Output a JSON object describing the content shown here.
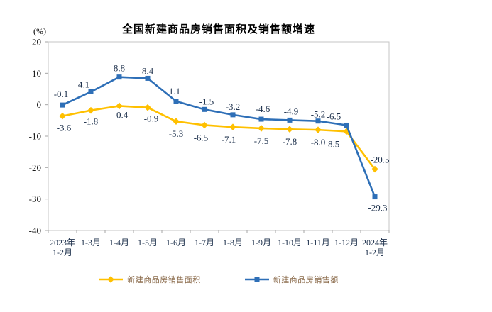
{
  "chart_data": {
    "type": "line",
    "title": "全国新建商品房销售面积及销售额增速",
    "unit_label": "(%)",
    "categories": [
      "2023年\n1-2月",
      "1-3月",
      "1-4月",
      "1-5月",
      "1-6月",
      "1-7月",
      "1-8月",
      "1-9月",
      "1-10月",
      "1-11月",
      "1-12月",
      "2024年\n1-2月"
    ],
    "series": [
      {
        "name": "新建商品房销售面积",
        "color": "#FFC000",
        "marker": "diamond",
        "values": [
          -3.6,
          -1.8,
          -0.4,
          -0.9,
          -5.3,
          -6.5,
          -7.1,
          -7.5,
          -7.8,
          -8.0,
          -8.5,
          -20.5
        ]
      },
      {
        "name": "新建商品房销售额",
        "color": "#2E6FB7",
        "marker": "square",
        "values": [
          -0.1,
          4.1,
          8.8,
          8.4,
          1.1,
          -1.5,
          -3.2,
          -4.6,
          -4.9,
          -5.2,
          -6.5,
          -29.3
        ]
      }
    ],
    "ylim": [
      -40,
      20
    ],
    "ytick_step": 10,
    "yticks": [
      20,
      10,
      0,
      -10,
      -20,
      -30,
      -40
    ],
    "grid": false,
    "legend_position": "bottom",
    "colors": {
      "axis": "#C6C6C6",
      "tick": "#A6A6A6",
      "ytick_label": "#1A1A1A",
      "xtick_label": "#20334E",
      "data_label": "#20334E",
      "legend_text": "#8A6A4A",
      "title": "#000000"
    }
  }
}
